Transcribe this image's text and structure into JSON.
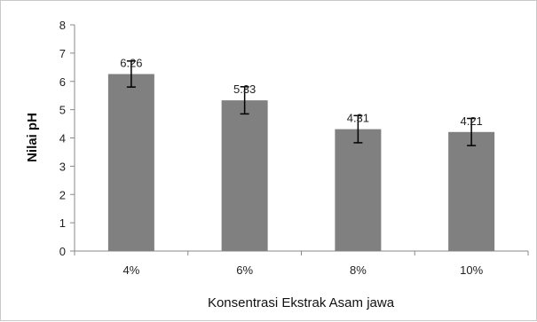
{
  "chart_data": {
    "type": "bar",
    "categories": [
      "4%",
      "6%",
      "8%",
      "10%"
    ],
    "values": [
      6.26,
      5.33,
      4.31,
      4.21
    ],
    "data_labels": [
      "6.26",
      "5.33",
      "4.31",
      "4.21"
    ],
    "error_low": [
      5.8,
      4.85,
      3.83,
      3.73
    ],
    "error_high": [
      6.72,
      5.81,
      4.79,
      4.69
    ],
    "ylim": [
      0,
      8
    ],
    "yticks": [
      0,
      1,
      2,
      3,
      4,
      5,
      6,
      7,
      8
    ],
    "xlabel": "Konsentrasi Ekstrak Asam jawa",
    "ylabel": "Nilai pH",
    "bar_color": "#808080",
    "grid": false,
    "legend": "none"
  }
}
